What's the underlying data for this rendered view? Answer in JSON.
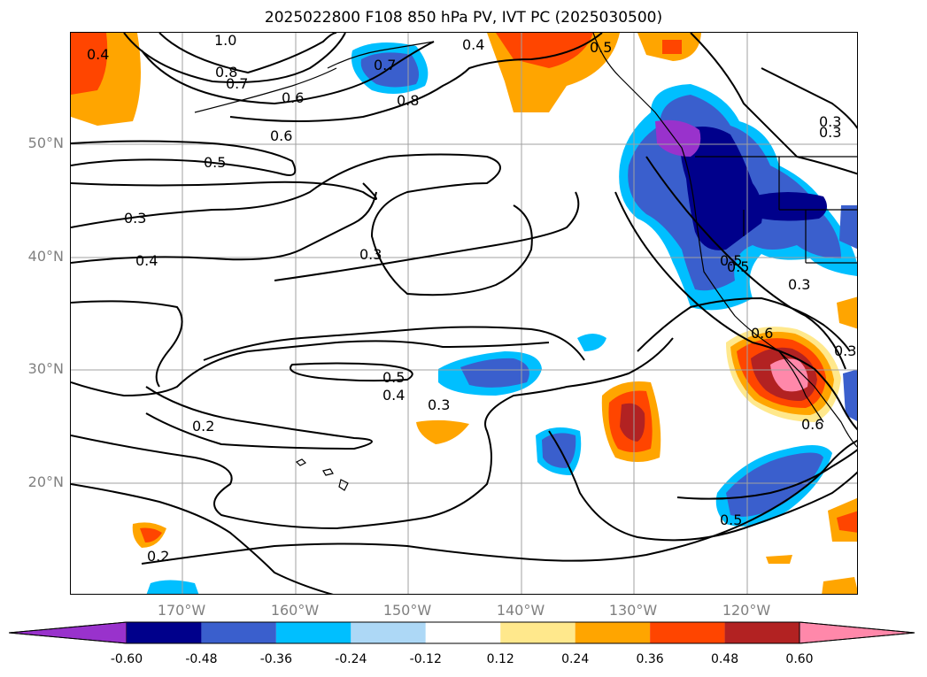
{
  "title": "2025022800 F108 850 hPa PV, IVT PC (2025030500)",
  "lat_ticks": [
    "50°N",
    "40°N",
    "30°N",
    "20°N"
  ],
  "lon_ticks": [
    "170°W",
    "160°W",
    "150°W",
    "140°W",
    "130°W",
    "120°W"
  ],
  "colorbar": {
    "colors": [
      "#9932CC",
      "#00008B",
      "#3A5FCD",
      "#00BFFF",
      "#ADD8F6",
      "#FFFFFF",
      "#FFE88C",
      "#FFA500",
      "#FF4500",
      "#B22222",
      "#FF88AA"
    ],
    "ticks": [
      "-0.60",
      "-0.48",
      "-0.36",
      "-0.24",
      "-0.12",
      "0.12",
      "0.24",
      "0.36",
      "0.48",
      "0.60"
    ]
  },
  "contour_labels": [
    "1.0",
    "0.8",
    "0.7",
    "0.6",
    "0.6",
    "0.5",
    "0.4",
    "0.4",
    "0.3",
    "0.3",
    "0.3",
    "0.4",
    "0.7",
    "0.8",
    "0.5",
    "0.5",
    "0.5",
    "0.4",
    "0.3",
    "0.2",
    "0.2",
    "0.6",
    "0.5",
    "0.3",
    "0.6",
    "0.5",
    "0.3",
    "0.3"
  ]
}
